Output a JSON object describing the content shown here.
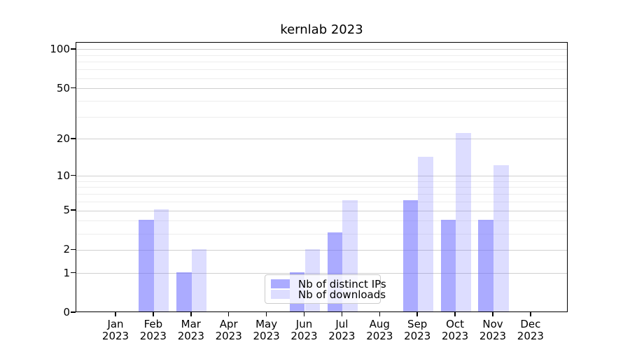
{
  "title": "kernlab 2023",
  "colors": {
    "bar_distinct_ips": "rgba(102,102,255,0.55)",
    "bar_downloads": "rgba(102,102,255,0.22)",
    "major_gridline": "#d0d0d0",
    "minor_gridline": "#ededed",
    "axis": "#000000",
    "text": "#000000",
    "legend_border": "#cccccc",
    "legend_background": "rgba(255,255,255,0.8)"
  },
  "legend": {
    "items": [
      {
        "label": "Nb of distinct IPs",
        "series": "distinct_ips"
      },
      {
        "label": "Nb of downloads",
        "series": "downloads"
      }
    ]
  },
  "x_axis": {
    "year": "2023",
    "months": [
      "Jan",
      "Feb",
      "Mar",
      "Apr",
      "May",
      "Jun",
      "Jul",
      "Aug",
      "Sep",
      "Oct",
      "Nov",
      "Dec"
    ]
  },
  "y_axis": {
    "tick_labels": [
      "0",
      "1",
      "2",
      "5",
      "10",
      "20",
      "50",
      "100"
    ]
  },
  "chart_data": {
    "type": "bar",
    "title": "kernlab 2023",
    "categories": [
      "Jan 2023",
      "Feb 2023",
      "Mar 2023",
      "Apr 2023",
      "May 2023",
      "Jun 2023",
      "Jul 2023",
      "Aug 2023",
      "Sep 2023",
      "Oct 2023",
      "Nov 2023",
      "Dec 2023"
    ],
    "series": [
      {
        "name": "Nb of distinct IPs",
        "values": [
          0,
          4,
          1,
          0,
          0,
          1,
          3,
          0,
          6,
          4,
          4,
          0
        ]
      },
      {
        "name": "Nb of downloads",
        "values": [
          0,
          5,
          2,
          0,
          0,
          2,
          6,
          0,
          14,
          22,
          12,
          0
        ]
      }
    ],
    "y_scale": "log1p",
    "y_ticks": [
      0,
      1,
      2,
      5,
      10,
      20,
      50,
      100
    ],
    "y_minor_ticks": [
      3,
      4,
      6,
      7,
      8,
      9,
      30,
      40,
      60,
      70,
      80,
      90
    ],
    "ylim": [
      0,
      113
    ],
    "grid": "major+minor",
    "legend_position": "lower center"
  }
}
